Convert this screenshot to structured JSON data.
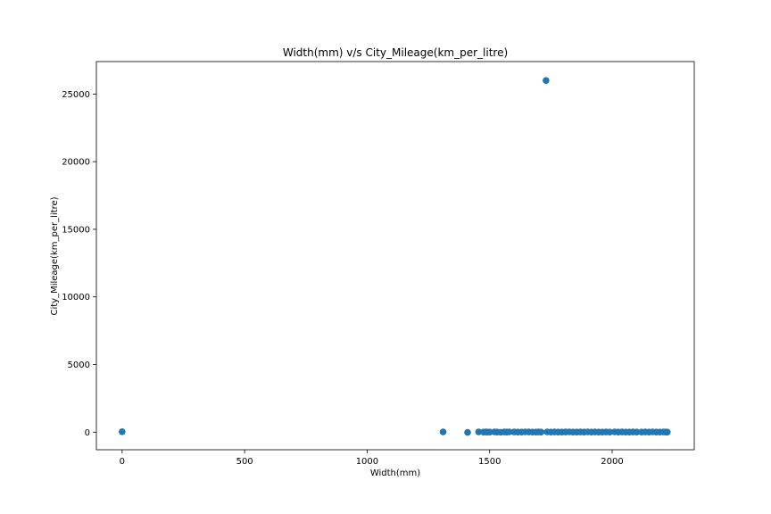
{
  "chart_data": {
    "type": "scatter",
    "title": "Width(mm) v/s City_Mileage(km_per_litre)",
    "xlabel": "Width(mm)",
    "ylabel": "City_Mileage(km_per_litre)",
    "xlim": [
      -105,
      2335
    ],
    "ylim": [
      -1300,
      27400
    ],
    "xticks": [
      0,
      500,
      1000,
      1500,
      2000
    ],
    "yticks": [
      0,
      5000,
      10000,
      15000,
      20000,
      25000
    ],
    "grid": false,
    "marker_color": "#1f77b4",
    "points": [
      [
        0,
        30
      ],
      [
        1310,
        20
      ],
      [
        1410,
        -20
      ],
      [
        1455,
        20
      ],
      [
        1475,
        10
      ],
      [
        1485,
        15
      ],
      [
        1490,
        5
      ],
      [
        1500,
        10
      ],
      [
        1520,
        20
      ],
      [
        1530,
        10
      ],
      [
        1545,
        -5
      ],
      [
        1560,
        15
      ],
      [
        1570,
        10
      ],
      [
        1580,
        20
      ],
      [
        1600,
        15
      ],
      [
        1615,
        5
      ],
      [
        1630,
        10
      ],
      [
        1645,
        20
      ],
      [
        1660,
        15
      ],
      [
        1675,
        10
      ],
      [
        1690,
        5
      ],
      [
        1700,
        15
      ],
      [
        1710,
        10
      ],
      [
        1730,
        26000
      ],
      [
        1735,
        20
      ],
      [
        1750,
        10
      ],
      [
        1765,
        15
      ],
      [
        1780,
        5
      ],
      [
        1795,
        10
      ],
      [
        1810,
        15
      ],
      [
        1825,
        20
      ],
      [
        1840,
        10
      ],
      [
        1855,
        5
      ],
      [
        1870,
        15
      ],
      [
        1885,
        10
      ],
      [
        1900,
        20
      ],
      [
        1915,
        10
      ],
      [
        1930,
        15
      ],
      [
        1945,
        5
      ],
      [
        1960,
        10
      ],
      [
        1975,
        15
      ],
      [
        1990,
        10
      ],
      [
        2010,
        20
      ],
      [
        2025,
        10
      ],
      [
        2040,
        15
      ],
      [
        2055,
        5
      ],
      [
        2070,
        10
      ],
      [
        2085,
        15
      ],
      [
        2100,
        10
      ],
      [
        2120,
        5
      ],
      [
        2135,
        15
      ],
      [
        2150,
        10
      ],
      [
        2165,
        20
      ],
      [
        2180,
        5
      ],
      [
        2195,
        10
      ],
      [
        2210,
        15
      ],
      [
        2220,
        5
      ],
      [
        2225,
        10
      ]
    ]
  }
}
